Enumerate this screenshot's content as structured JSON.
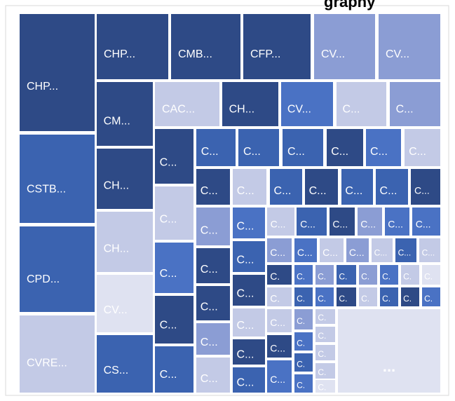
{
  "chart_data": {
    "type": "treemap",
    "title": "graphy",
    "labels": [
      "CHP...",
      "CSTB...",
      "CPD...",
      "CVRE...",
      "CHP...",
      "CMB...",
      "CFP...",
      "CV...",
      "CV...",
      "CM...",
      "CAC...",
      "CH...",
      "CV...",
      "C...",
      "C...",
      "CH...",
      "CH...",
      "CV...",
      "CS...",
      "C...",
      "C...",
      "C...",
      "C...",
      "C...",
      "C...",
      "C...",
      "C...",
      "C...",
      "C...",
      "C...",
      "C...",
      "C...",
      "C...",
      "C...",
      "C...",
      "C...",
      "C...",
      "C...",
      "C...",
      "C...",
      "C...",
      "C...",
      "C...",
      "C...",
      "C...",
      "C...",
      "C...",
      "C...",
      "C...",
      "C...",
      "C...",
      "C...",
      "C...",
      "C...",
      "C...",
      "C...",
      "C...",
      "C...",
      "C...",
      "C...",
      "C...",
      "C.",
      "C.",
      "C.",
      "C.",
      "C.",
      "C.",
      "C.",
      "C.",
      "C.",
      "C.",
      "C.",
      "C.",
      "C.",
      "C.",
      "C.",
      "C.",
      "C...",
      "C...",
      "C...",
      "C.",
      "C.",
      "C.",
      "C.",
      "C.",
      "C.",
      "C.",
      "C.",
      "C.",
      "..."
    ]
  }
}
